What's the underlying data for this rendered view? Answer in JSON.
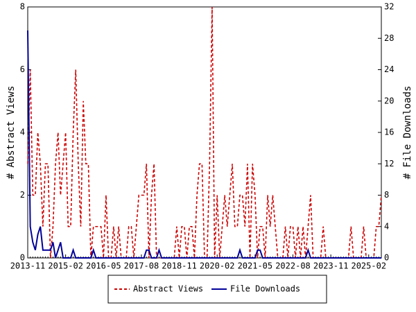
{
  "chart_data": {
    "type": "line",
    "ylabel": "# Abstract Views",
    "y2label": "# File Downloads",
    "categories": [
      "2013-11",
      null,
      null,
      null,
      null,
      null,
      null,
      null,
      null,
      null,
      null,
      null,
      null,
      null,
      null,
      "2015-02",
      null,
      null,
      null,
      null,
      null,
      null,
      null,
      null,
      null,
      null,
      null,
      null,
      null,
      null,
      "2016-05",
      null,
      null,
      null,
      null,
      null,
      null,
      null,
      null,
      null,
      null,
      null,
      null,
      null,
      null,
      "2017-08",
      null,
      null,
      null,
      null,
      null,
      null,
      null,
      null,
      null,
      null,
      null,
      null,
      null,
      null,
      "2018-11",
      null,
      null,
      null,
      null,
      null,
      null,
      null,
      null,
      null,
      null,
      null,
      null,
      null,
      null,
      "2020-02",
      null,
      null,
      null,
      null,
      null,
      null,
      null,
      null,
      null,
      null,
      null,
      null,
      null,
      null,
      "2021-05",
      null,
      null,
      null,
      null,
      null,
      null,
      null,
      null,
      null,
      null,
      null,
      null,
      null,
      null,
      "2022-08",
      null,
      null,
      null,
      null,
      null,
      null,
      null,
      null,
      null,
      null,
      null,
      null,
      null,
      null,
      "2023-11",
      null,
      null,
      null,
      null,
      null,
      null,
      null,
      null,
      null,
      null,
      null,
      null,
      null,
      null,
      "2025-02",
      null,
      null,
      null,
      null,
      null
    ],
    "series": [
      {
        "name": "Abstract Views",
        "color": "#cc0000",
        "dashed": true,
        "values": [
          3,
          6,
          2,
          2,
          4,
          3,
          1,
          3,
          3,
          0,
          1,
          3,
          4,
          2,
          3,
          4,
          1,
          1,
          4,
          6,
          3,
          1,
          5,
          3,
          3,
          0,
          1,
          1,
          1,
          1,
          0,
          2,
          0,
          0,
          1,
          0,
          1,
          0,
          0,
          0,
          1,
          1,
          0,
          1,
          2,
          2,
          2,
          3,
          0,
          2,
          3,
          0,
          0,
          0,
          0,
          0,
          0,
          0,
          0,
          1,
          0,
          1,
          1,
          0,
          1,
          1,
          0,
          2,
          3,
          3,
          0,
          0,
          3,
          8,
          0,
          2,
          0,
          1,
          2,
          1,
          2,
          3,
          1,
          1,
          2,
          2,
          1,
          3,
          0,
          3,
          2,
          0,
          1,
          1,
          0,
          2,
          1,
          2,
          1,
          0,
          0,
          0,
          1,
          0,
          1,
          1,
          0,
          1,
          0,
          1,
          0,
          1,
          2,
          0,
          0,
          0,
          0,
          1,
          0,
          0,
          0,
          0,
          0,
          0,
          0,
          0,
          0,
          0,
          1,
          0,
          0,
          0,
          0,
          1,
          0,
          0,
          0,
          0,
          1,
          1,
          2
        ]
      },
      {
        "name": "File Downloads",
        "color": "#000099",
        "dashed": false,
        "axis": "y2",
        "values": [
          29,
          4,
          2,
          1,
          3,
          4,
          1,
          1,
          1,
          1,
          2,
          0,
          1,
          2,
          0,
          0,
          0,
          0,
          1,
          0,
          0,
          0,
          0,
          0,
          0,
          0,
          1,
          0,
          0,
          0,
          0,
          0,
          0,
          0,
          0,
          0,
          0,
          0,
          0,
          0,
          0,
          0,
          0,
          0,
          0,
          0,
          0,
          1,
          1,
          0,
          0,
          0,
          1,
          0,
          0,
          0,
          0,
          0,
          0,
          0,
          0,
          0,
          0,
          0,
          0,
          0,
          0,
          0,
          0,
          0,
          0,
          0,
          0,
          0,
          0,
          0,
          0,
          0,
          0,
          0,
          0,
          0,
          0,
          0,
          1,
          0,
          0,
          0,
          0,
          0,
          0,
          1,
          1,
          0,
          0,
          0,
          0,
          0,
          0,
          0,
          0,
          0,
          0,
          0,
          0,
          0,
          0,
          0,
          0,
          0,
          0,
          1,
          0,
          0,
          0,
          0,
          0,
          0,
          0,
          0,
          0,
          0,
          0,
          0,
          0,
          0,
          0,
          0,
          0,
          0,
          0,
          0,
          0,
          0,
          0,
          0,
          0,
          0,
          0,
          0,
          0
        ]
      }
    ],
    "ylim": [
      0,
      8
    ],
    "yticks": [
      0,
      2,
      4,
      6,
      8
    ],
    "y2lim": [
      0,
      32
    ],
    "y2ticks": [
      0,
      4,
      8,
      12,
      16,
      20,
      24,
      28,
      32
    ],
    "legend": "bottom"
  }
}
